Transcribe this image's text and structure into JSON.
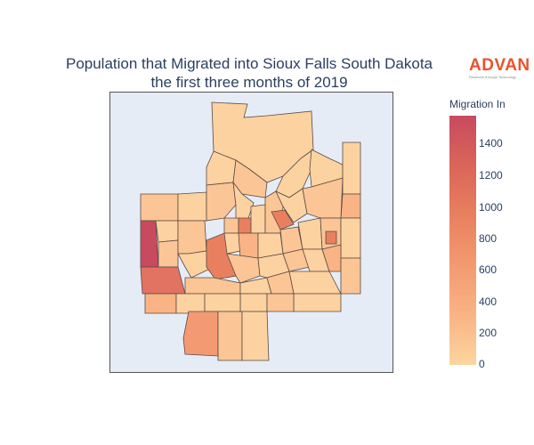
{
  "title_line1": "Population that Migrated into Sioux Falls South Dakota",
  "title_line2": "the first three months of 2019",
  "logo": {
    "word": "ADVAN",
    "tagline": "Research through Technology"
  },
  "colorbar": {
    "title": "Migration In",
    "ticks": [
      "1400",
      "1200",
      "1000",
      "800",
      "600",
      "400",
      "200",
      "0"
    ],
    "colors": [
      "#fcd59f",
      "#f9b384",
      "#f39a72",
      "#e8805f",
      "#da6558",
      "#c84a5f"
    ]
  },
  "chart_data": {
    "type": "choropleth",
    "value_label": "Migration In",
    "range": [
      0,
      1550
    ]
  }
}
